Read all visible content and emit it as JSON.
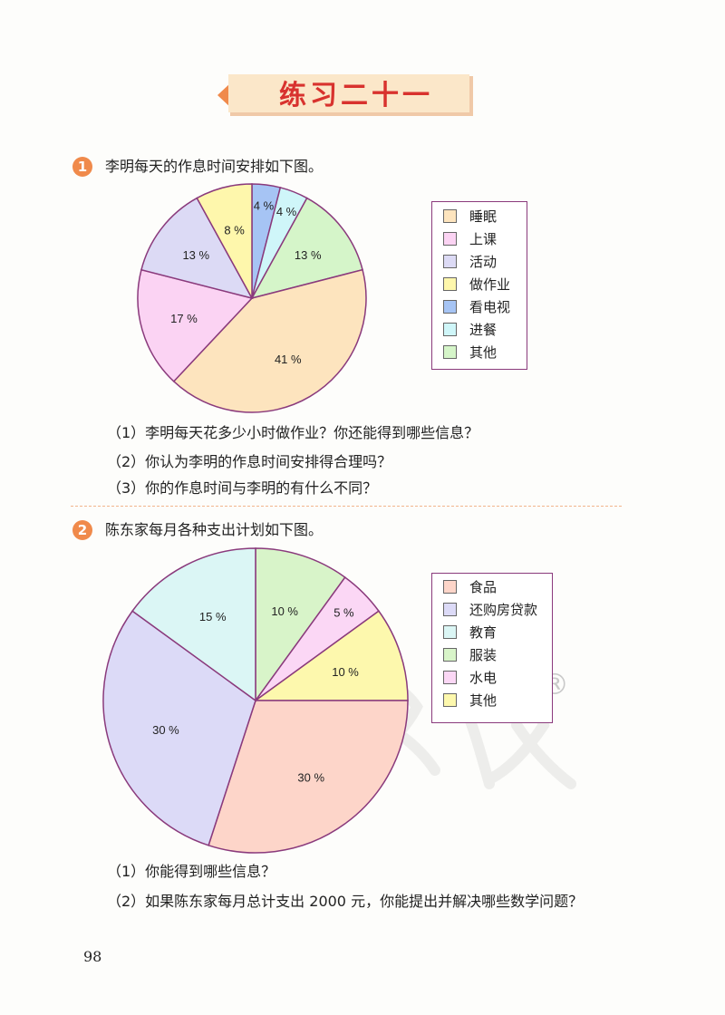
{
  "title": "练习二十一",
  "page_number": "98",
  "colors": {
    "accent": "#f08a4b",
    "title_red": "#d8322e",
    "legend_border": "#8a3a7c",
    "pie_stroke": "#8a3a7c"
  },
  "q1": {
    "number": "1",
    "text": "李明每天的作息时间安排如下图。",
    "subs": [
      "（1）李明每天花多少小时做作业？你还能得到哪些信息？",
      "（2）你认为李明的作息时间安排得合理吗？",
      "（3）你的作息时间与李明的有什么不同？"
    ]
  },
  "q2": {
    "number": "2",
    "text": "陈东家每月各种支出计划如下图。",
    "subs": [
      "（1）你能得到哪些信息？",
      "（2）如果陈东家每月总计支出 2000 元，你能提出并解决哪些数学问题？"
    ]
  },
  "chart_data": [
    {
      "type": "pie",
      "title": "",
      "legend_position": "right",
      "slices": [
        {
          "label": "睡眠",
          "value": 41,
          "value_label": "41 %",
          "color": "#fde4be"
        },
        {
          "label": "上课",
          "value": 17,
          "value_label": "17 %",
          "color": "#fbd3f3"
        },
        {
          "label": "活动",
          "value": 13,
          "value_label": "13 %",
          "color": "#dcdaf5"
        },
        {
          "label": "做作业",
          "value": 8,
          "value_label": "8 %",
          "color": "#fef7ac"
        },
        {
          "label": "看电视",
          "value": 4,
          "value_label": "4 %",
          "color": "#a6c4f4"
        },
        {
          "label": "进餐",
          "value": 4,
          "value_label": "4 %",
          "color": "#cff6f9"
        },
        {
          "label": "其他",
          "value": 13,
          "value_label": "13 %",
          "color": "#d5f5c9"
        }
      ]
    },
    {
      "type": "pie",
      "title": "",
      "legend_position": "right",
      "slices": [
        {
          "label": "食品",
          "value": 30,
          "value_label": "30 %",
          "color": "#fdd5c9"
        },
        {
          "label": "还购房贷款",
          "value": 30,
          "value_label": "30 %",
          "color": "#dcdaf7"
        },
        {
          "label": "教育",
          "value": 15,
          "value_label": "15 %",
          "color": "#dbf6f5"
        },
        {
          "label": "服装",
          "value": 10,
          "value_label": "10 %",
          "color": "#d8f4c9"
        },
        {
          "label": "水电",
          "value": 5,
          "value_label": "5 %",
          "color": "#fbd7f5"
        },
        {
          "label": "其他",
          "value": 10,
          "value_label": "10 %",
          "color": "#fdf8ad"
        }
      ]
    }
  ]
}
